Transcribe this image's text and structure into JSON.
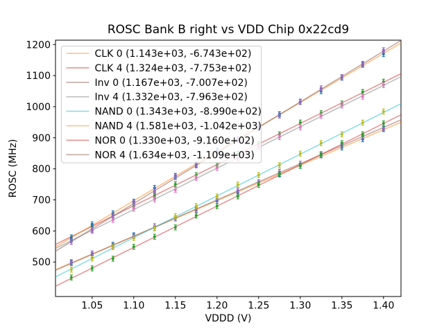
{
  "figure": {
    "background": "#ffffff",
    "spine_color": "#000000",
    "legend_border_color": "#cccccc",
    "legend_fill": "rgba(255,255,255,0.8)"
  },
  "chart_data": {
    "type": "scatter",
    "title": "ROSC Bank B right vs VDD Chip 0x22cd9",
    "xlabel": "VDDD (V)",
    "ylabel": "ROSC (MHz)",
    "xlim": [
      1.006,
      1.421
    ],
    "ylim": [
      389,
      1214
    ],
    "grid": false,
    "legend_position": "upper left",
    "xticks": {
      "values": [
        1.05,
        1.1,
        1.15,
        1.2,
        1.25,
        1.3,
        1.35,
        1.4
      ],
      "labels": [
        "1.05",
        "1.10",
        "1.15",
        "1.20",
        "1.25",
        "1.30",
        "1.35",
        "1.40"
      ]
    },
    "yticks": {
      "values": [
        500,
        600,
        700,
        800,
        900,
        1000,
        1100,
        1200
      ],
      "labels": [
        "500",
        "600",
        "700",
        "800",
        "900",
        "1000",
        "1100",
        "1200"
      ]
    },
    "x": [
      1.025,
      1.05,
      1.075,
      1.1,
      1.125,
      1.15,
      1.175,
      1.2,
      1.225,
      1.25,
      1.275,
      1.3,
      1.325,
      1.35,
      1.375,
      1.4
    ],
    "yerr": 8,
    "series": [
      {
        "name": "CLK 0",
        "legend_label": "CLK 0 (1.143e+03, -6.743e+02)",
        "fit_slope": 1143.0,
        "fit_intercept": -674.3,
        "marker_color": "#1f77b4",
        "line_color": "#ff7f0e",
        "line_alpha": 0.5,
        "scatter_y": [
          499.3,
          522.9,
          555.4,
          586.0,
          609.6,
          640.2,
          671.7,
          696.3,
          722.9,
          756.5,
          784.0,
          809.6,
          843.2,
          868.8,
          895.3,
          927.9
        ]
      },
      {
        "name": "CLK 4",
        "legend_label": "CLK 4 (1.324e+03, -7.753e+02)",
        "fit_slope": 1324.0,
        "fit_intercept": -775.3,
        "marker_color": "#2ca02c",
        "line_color": "#d62728",
        "line_alpha": 0.5,
        "scatter_y": [
          578.8,
          615.9,
          651.0,
          679.1,
          714.2,
          750.3,
          779.4,
          810.5,
          848.6,
          880.7,
          910.8,
          948.9,
          979.0,
          1010.1,
          1047.2,
          1080.3
        ]
      },
      {
        "name": "Inv 0",
        "legend_label": "Inv 0 (1.167e+03, -7.007e+02)",
        "fit_slope": 1167.0,
        "fit_intercept": -700.7,
        "marker_color": "#9467bd",
        "line_color": "#8c564b",
        "line_alpha": 0.5,
        "scatter_y": [
          496.5,
          527.7,
          551.8,
          583.0,
          615.2,
          640.4,
          667.5,
          701.7,
          729.9,
          756.1,
          790.2,
          816.4,
          843.6,
          876.8,
          905.9,
          930.1
        ]
      },
      {
        "name": "Inv 4",
        "legend_label": "Inv 4 (1.332e+03, -7.963e+02)",
        "fit_slope": 1332.0,
        "fit_intercept": -796.3,
        "marker_color": "#e377c2",
        "line_color": "#7f7f7f",
        "line_alpha": 0.5,
        "scatter_y": [
          572.0,
          600.3,
          635.6,
          671.9,
          701.2,
          732.5,
          770.8,
          803.1,
          833.4,
          871.7,
          902.0,
          933.3,
          970.6,
          1003.9,
          1032.2,
          1069.5
        ]
      },
      {
        "name": "NAND 0",
        "legend_label": "NAND 0 (1.343e+03, -8.990e+02)",
        "fit_slope": 1343.0,
        "fit_intercept": -899.0,
        "marker_color": "#bcbd22",
        "line_color": "#17becf",
        "line_alpha": 0.5,
        "scatter_y": [
          475.6,
          511.2,
          547.7,
          577.3,
          608.9,
          647.5,
          680.0,
          710.6,
          749.2,
          779.8,
          811.3,
          848.9,
          882.5,
          911.1,
          948.6,
          984.2
        ]
      },
      {
        "name": "NAND 4",
        "legend_label": "NAND 4 (1.581e+03, -1.042e+03)",
        "fit_slope": 1581.0,
        "fit_intercept": -1042.0,
        "marker_color": "#1f77b4",
        "line_color": "#ff7f0e",
        "line_alpha": 0.5,
        "scatter_y": [
          578.5,
          621.1,
          656.6,
          694.1,
          738.6,
          777.2,
          813.7,
          858.2,
          894.7,
          932.3,
          975.8,
          1015.3,
          1049.8,
          1093.4,
          1134.9,
          1169.4
        ]
      },
      {
        "name": "NOR 0",
        "legend_label": "NOR 0 (1.330e+03, -9.160e+02)",
        "fit_slope": 1330.0,
        "fit_intercept": -916.0,
        "marker_color": "#2ca02c",
        "line_color": "#d62728",
        "line_alpha": 0.5,
        "scatter_y": [
          450.3,
          479.5,
          510.8,
          549.0,
          581.3,
          611.5,
          649.8,
          680.0,
          711.3,
          748.5,
          781.8,
          810.0,
          847.3,
          882.5,
          910.8,
          946.0
        ]
      },
      {
        "name": "NOR 4",
        "legend_label": "NOR 4 (1.634e+03, -1.109e+03)",
        "fit_slope": 1634.0,
        "fit_intercept": -1109.0,
        "marker_color": "#9467bd",
        "line_color": "#8c564b",
        "line_alpha": 0.5,
        "scatter_y": [
          564.9,
          603.7,
          649.6,
          689.4,
          727.3,
          773.1,
          811.0,
          849.8,
          894.7,
          935.5,
          971.4,
          1016.2,
          1059.1,
          1094.9,
          1137.8,
          1181.6
        ]
      }
    ]
  }
}
